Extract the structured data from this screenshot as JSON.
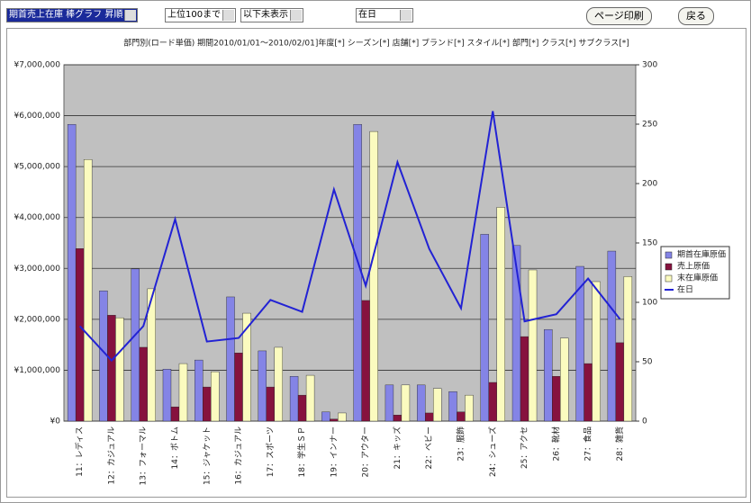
{
  "controls": {
    "report_select": "期首売上在庫 棒グラフ 昇順",
    "range_select": "上位100まで",
    "rest_select": "以下未表示",
    "line_select": "在日",
    "print_button": "ページ印刷",
    "back_button": "戻る"
  },
  "chart_data": {
    "type": "bar_line",
    "title": "部門別(ロード単価) 期間2010/01/01～2010/02/01]年度[*] シーズン[*] 店舗[*] ブランド[*] スタイル[*] 部門[*] クラス[*] サブクラス[*]",
    "categories": [
      "11：レディス",
      "12：カジュアル",
      "13：フォーマル",
      "14：ボトム",
      "15：ジャケット",
      "16：カジュアル",
      "17：スポーツ",
      "18：学生ＳＰ",
      "19：インナー",
      "20：アウター",
      "21：キッズ",
      "22：ベビー",
      "23：服飾",
      "24：シューズ",
      "25：アクセ",
      "26：靴材",
      "27：食品",
      "28：雑貨"
    ],
    "series": [
      {
        "name": "期首在庫原価",
        "color": "#8484e6",
        "values": [
          5830000,
          2560000,
          2990000,
          1020000,
          1200000,
          2440000,
          1380000,
          880000,
          180000,
          5830000,
          710000,
          710000,
          580000,
          3670000,
          3450000,
          1800000,
          3040000,
          3340000
        ]
      },
      {
        "name": "売上原価",
        "color": "#86123e",
        "values": [
          3390000,
          2080000,
          1450000,
          280000,
          670000,
          1340000,
          670000,
          510000,
          40000,
          2370000,
          120000,
          160000,
          180000,
          760000,
          1660000,
          880000,
          1130000,
          1540000
        ]
      },
      {
        "name": "末在庫原価",
        "color": "#fbfbbf",
        "values": [
          5140000,
          2030000,
          2600000,
          1130000,
          970000,
          2120000,
          1450000,
          900000,
          160000,
          5690000,
          710000,
          640000,
          510000,
          4200000,
          2970000,
          1630000,
          2740000,
          2840000
        ]
      },
      {
        "name": "在日",
        "color": "#2222d4",
        "type": "line",
        "axis": "y2",
        "values": [
          80,
          51,
          80,
          170,
          67,
          70,
          102,
          92,
          195,
          114,
          218,
          145,
          95,
          261,
          84,
          90,
          120,
          86
        ]
      }
    ],
    "ylim": [
      0,
      7000000
    ],
    "yticks": [
      {
        "value": 0,
        "label": "¥0"
      },
      {
        "value": 1000000,
        "label": "¥1,000,000"
      },
      {
        "value": 2000000,
        "label": "¥2,000,000"
      },
      {
        "value": 3000000,
        "label": "¥3,000,000"
      },
      {
        "value": 4000000,
        "label": "¥4,000,000"
      },
      {
        "value": 5000000,
        "label": "¥5,000,000"
      },
      {
        "value": 6000000,
        "label": "¥6,000,000"
      },
      {
        "value": 7000000,
        "label": "¥7,000,000"
      }
    ],
    "y2lim": [
      0,
      300
    ],
    "y2ticks": [
      0,
      50,
      100,
      150,
      200,
      250,
      300
    ],
    "grid": true,
    "legend": "right"
  }
}
